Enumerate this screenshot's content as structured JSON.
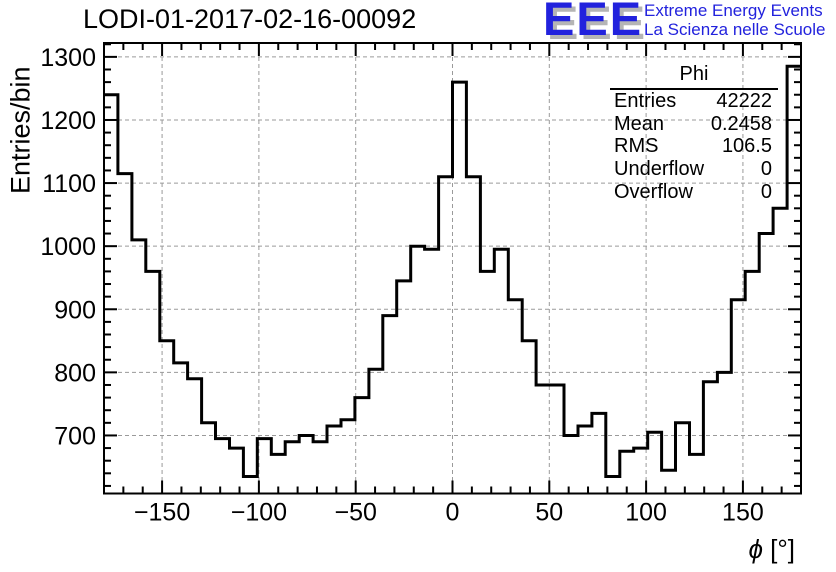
{
  "title": "LODI-01-2017-02-16-00092",
  "logo": {
    "letters": "EEE",
    "line1": "Extreme Energy Events",
    "line2": "La Scienza nelle Scuole",
    "color": "#2222dd",
    "shadow_color": "#b5b5b5"
  },
  "stats": {
    "title": "Phi",
    "rows": [
      {
        "label": "Entries",
        "value": "42222"
      },
      {
        "label": "Mean",
        "value": "0.2458"
      },
      {
        "label": "RMS",
        "value": "106.5"
      },
      {
        "label": "Underflow",
        "value": "0"
      },
      {
        "label": "Overflow",
        "value": "0"
      }
    ]
  },
  "chart_data": {
    "type": "bar",
    "style": "step-outline-histogram",
    "title": "LODI-01-2017-02-16-00092",
    "xlabel": "ϕ [°]",
    "xlabel_parts": {
      "phi": "ϕ",
      "unit": " [°]"
    },
    "ylabel": "Entries/bin",
    "xlim": [
      -180,
      180
    ],
    "ylim": [
      608,
      1322
    ],
    "bin_start": -180,
    "bin_width": 7.2,
    "values": [
      1240,
      1115,
      1010,
      960,
      850,
      815,
      790,
      720,
      695,
      680,
      635,
      695,
      670,
      690,
      700,
      690,
      715,
      725,
      760,
      805,
      890,
      945,
      1000,
      995,
      1110,
      1260,
      1110,
      960,
      995,
      915,
      850,
      780,
      780,
      700,
      715,
      735,
      635,
      675,
      680,
      705,
      645,
      720,
      670,
      785,
      800,
      915,
      960,
      1020,
      1060,
      1285
    ],
    "x_ticks": {
      "major": [
        -150,
        -100,
        -50,
        0,
        50,
        100,
        150
      ],
      "major_step": 50,
      "minor_step": 10
    },
    "y_ticks": {
      "major": [
        700,
        800,
        900,
        1000,
        1100,
        1200,
        1300
      ],
      "major_step": 100,
      "minor_step": 20
    },
    "grid": "dashed gray on major ticks, both axes",
    "line_color": "#000000",
    "legend": "none (stats box instead)"
  }
}
